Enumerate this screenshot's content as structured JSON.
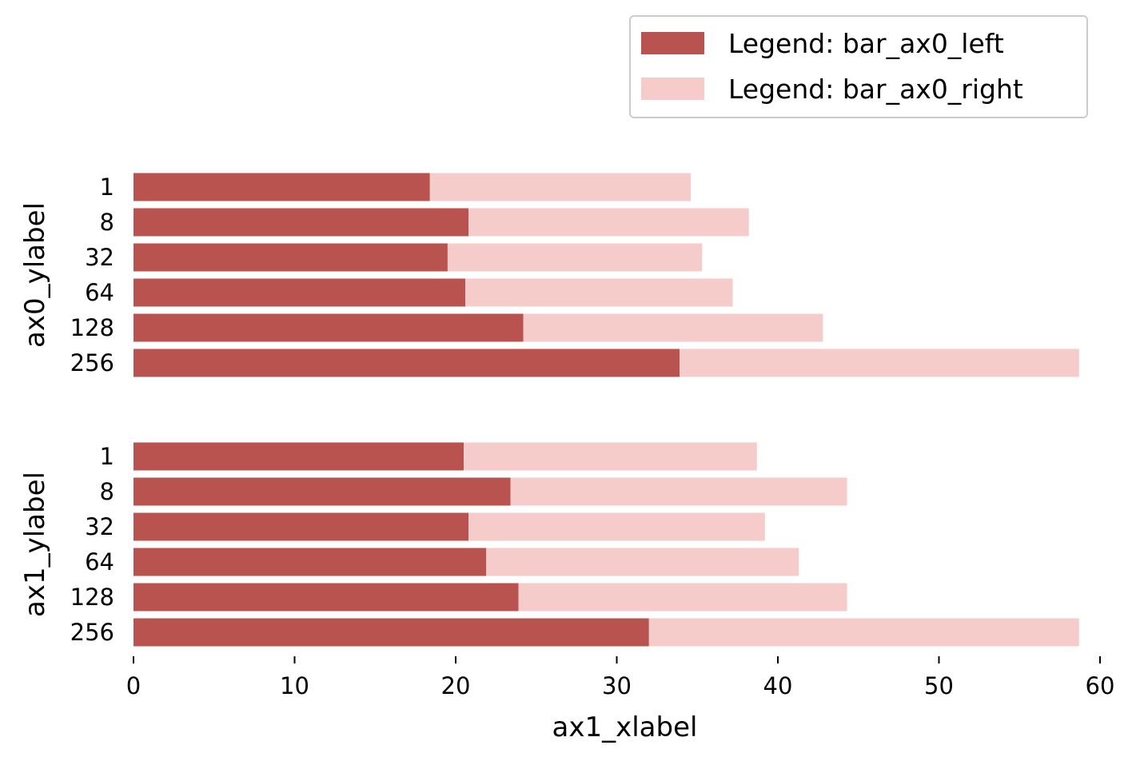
{
  "chart_data": {
    "type": "bar",
    "orientation": "horizontal",
    "stacked": true,
    "colors": {
      "left": "#b9534f",
      "right": "#f6cccb",
      "axis": "#000000"
    },
    "legend": {
      "placement": "top-right",
      "entries": [
        "Legend: bar_ax0_left",
        "Legend: bar_ax0_right"
      ]
    },
    "xlabel": "ax1_xlabel",
    "xlim": [
      0,
      60
    ],
    "xticks": [
      0,
      10,
      20,
      30,
      40,
      50,
      60
    ],
    "panels": [
      {
        "ylabel": "ax0_ylabel",
        "categories": [
          "1",
          "8",
          "32",
          "64",
          "128",
          "256"
        ],
        "series": [
          {
            "values": [
              18.4,
              20.8,
              19.5,
              20.6,
              24.2,
              33.9
            ]
          },
          {
            "values": [
              16.2,
              17.4,
              15.8,
              16.6,
              18.6,
              24.8
            ]
          }
        ]
      },
      {
        "ylabel": "ax1_ylabel",
        "categories": [
          "1",
          "8",
          "32",
          "64",
          "128",
          "256"
        ],
        "series": [
          {
            "values": [
              20.5,
              23.4,
              20.8,
              21.9,
              23.9,
              32.0
            ]
          },
          {
            "values": [
              18.2,
              20.9,
              18.4,
              19.4,
              20.4,
              26.7
            ]
          }
        ]
      }
    ]
  }
}
